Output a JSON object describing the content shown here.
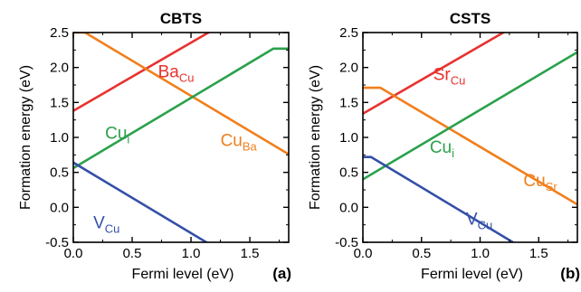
{
  "chart_data": [
    {
      "type": "line",
      "title": "CBTS",
      "panel_label": "(a)",
      "xlabel": "Fermi level (eV)",
      "ylabel": "Formation energy (eV)",
      "xlim": [
        0,
        1.83
      ],
      "ylim": [
        -0.5,
        2.5
      ],
      "x_ticks": [
        "0.0",
        "0.5",
        "1.0",
        "1.5"
      ],
      "y_ticks": [
        "-0.5",
        "0.0",
        "0.5",
        "1.0",
        "1.5",
        "2.0",
        "2.5"
      ],
      "series": [
        {
          "color": "#e8312f",
          "points": [
            [
              0,
              1.38
            ],
            [
              1.2,
              2.55
            ]
          ]
        },
        {
          "color": "#f07f1c",
          "points": [
            [
              0,
              2.5
            ],
            [
              0.1,
              2.5
            ],
            [
              1.83,
              0.76
            ]
          ]
        },
        {
          "color": "#2aa14b",
          "points": [
            [
              0,
              0.56
            ],
            [
              1.7,
              2.27
            ],
            [
              1.83,
              2.27
            ]
          ]
        },
        {
          "color": "#3450a8",
          "points": [
            [
              0,
              0.64
            ],
            [
              1.18,
              -0.55
            ]
          ]
        }
      ],
      "annotations": [
        {
          "base": "Ba",
          "sub": "Cu",
          "color": "#e8312f",
          "x": 0.72,
          "y": 1.86
        },
        {
          "base": "Cu",
          "sub": "Ba",
          "color": "#f07f1c",
          "x": 1.25,
          "y": 0.88
        },
        {
          "base": "Cu",
          "sub": "i",
          "color": "#2aa14b",
          "x": 0.27,
          "y": 0.98
        },
        {
          "base": "V",
          "sub": "Cu",
          "color": "#3450a8",
          "x": 0.17,
          "y": -0.3
        }
      ]
    },
    {
      "type": "line",
      "title": "CSTS",
      "panel_label": "(b)",
      "xlabel": "Fermi level (eV)",
      "ylabel": "Formation energy (eV)",
      "xlim": [
        0,
        1.83
      ],
      "ylim": [
        -0.5,
        2.5
      ],
      "x_ticks": [
        "0.0",
        "0.5",
        "1.0",
        "1.5"
      ],
      "y_ticks": [
        "-0.5",
        "0.0",
        "0.5",
        "1.0",
        "1.5",
        "2.0",
        "2.5"
      ],
      "series": [
        {
          "color": "#e8312f",
          "points": [
            [
              0,
              1.34
            ],
            [
              1.25,
              2.55
            ]
          ]
        },
        {
          "color": "#f07f1c",
          "points": [
            [
              0,
              1.71
            ],
            [
              0.15,
              1.71
            ],
            [
              1.83,
              0.04
            ]
          ]
        },
        {
          "color": "#2aa14b",
          "points": [
            [
              0,
              0.4
            ],
            [
              1.83,
              2.22
            ]
          ]
        },
        {
          "color": "#3450a8",
          "points": [
            [
              0,
              0.72
            ],
            [
              0.07,
              0.72
            ],
            [
              1.28,
              -0.5
            ]
          ]
        }
      ],
      "annotations": [
        {
          "base": "Sr",
          "sub": "Cu",
          "color": "#e8312f",
          "x": 0.6,
          "y": 1.82
        },
        {
          "base": "Cu",
          "sub": "Sr",
          "color": "#f07f1c",
          "x": 1.37,
          "y": 0.3
        },
        {
          "base": "Cu",
          "sub": "i",
          "color": "#2aa14b",
          "x": 0.57,
          "y": 0.78
        },
        {
          "base": "V",
          "sub": "Cu",
          "color": "#3450a8",
          "x": 0.88,
          "y": -0.25
        }
      ]
    }
  ]
}
